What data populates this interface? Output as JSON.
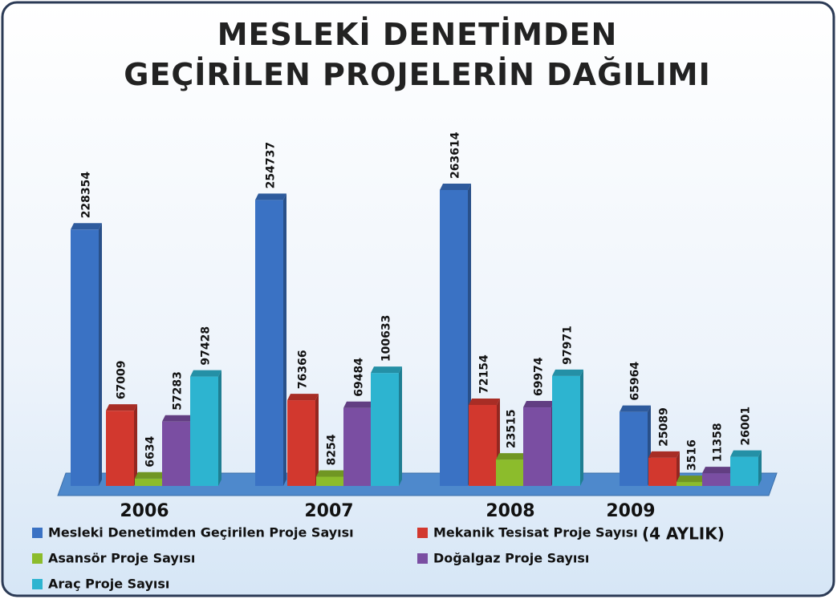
{
  "chart_data": {
    "type": "bar3d",
    "title": "MESLEKİ DENETİMDEN GEÇİRİLEN PROJELERİN DAĞILIMI",
    "annotation": "(4 AYLIK)",
    "categories": [
      "2006",
      "2007",
      "2008",
      "2009"
    ],
    "series": [
      {
        "name": "Mesleki Denetimden Geçirilen Proje Sayısı",
        "color": "#3a72c4",
        "values": [
          228354,
          254737,
          263614,
          65964
        ]
      },
      {
        "name": "Mekanik Tesisat Proje Sayısı",
        "color": "#d2382e",
        "values": [
          67009,
          76366,
          72154,
          25089
        ]
      },
      {
        "name": "Asansör Proje Sayısı",
        "color": "#8cbc2c",
        "values": [
          6634,
          8254,
          23515,
          3516
        ]
      },
      {
        "name": "Doğalgaz Proje Sayısı",
        "color": "#7a4ea2",
        "values": [
          57283,
          69484,
          69974,
          11358
        ]
      },
      {
        "name": "Araç Proje Sayısı",
        "color": "#2db4d0",
        "values": [
          97428,
          100633,
          97971,
          26001
        ]
      }
    ],
    "legend": "bottom"
  }
}
